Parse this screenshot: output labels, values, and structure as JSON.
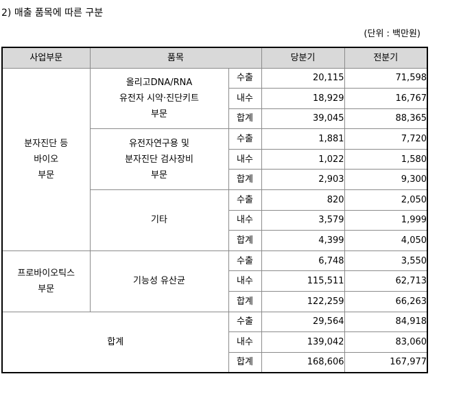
{
  "title": "2) 매출 품목에 따른 구분",
  "unit": "(단위 : 백만원)",
  "table": {
    "headers": {
      "segment": "사업부문",
      "item": "품목",
      "current": "당분기",
      "previous": "전분기"
    },
    "type_labels": {
      "export": "수출",
      "domestic": "내수",
      "total": "합계"
    },
    "segments": [
      {
        "segment_lines": [
          "분자진단 등",
          "바이오",
          "부문"
        ],
        "items": [
          {
            "item_lines": [
              "올리고DNA/RNA",
              "유전자 시약·진단키트",
              "부문"
            ],
            "rows": [
              {
                "type": "수출",
                "current": "20,115",
                "previous": "71,598"
              },
              {
                "type": "내수",
                "current": "18,929",
                "previous": "16,767"
              },
              {
                "type": "합계",
                "current": "39,045",
                "previous": "88,365"
              }
            ]
          },
          {
            "item_lines": [
              "유전자연구용 및",
              "분자진단 검사장비",
              "부문"
            ],
            "rows": [
              {
                "type": "수출",
                "current": "1,881",
                "previous": "7,720"
              },
              {
                "type": "내수",
                "current": "1,022",
                "previous": "1,580"
              },
              {
                "type": "합계",
                "current": "2,903",
                "previous": "9,300"
              }
            ]
          },
          {
            "item_lines": [
              "기타"
            ],
            "rows": [
              {
                "type": "수출",
                "current": "820",
                "previous": "2,050"
              },
              {
                "type": "내수",
                "current": "3,579",
                "previous": "1,999"
              },
              {
                "type": "합계",
                "current": "4,399",
                "previous": "4,050"
              }
            ]
          }
        ]
      },
      {
        "segment_lines": [
          "프로바이오틱스",
          "부문"
        ],
        "items": [
          {
            "item_lines": [
              "기능성 유산균"
            ],
            "rows": [
              {
                "type": "수출",
                "current": "6,748",
                "previous": "3,550"
              },
              {
                "type": "내수",
                "current": "115,511",
                "previous": "62,713"
              },
              {
                "type": "합계",
                "current": "122,259",
                "previous": "66,263"
              }
            ]
          }
        ]
      }
    ],
    "grand_total": {
      "label": "합계",
      "rows": [
        {
          "type": "수출",
          "current": "29,564",
          "previous": "84,918"
        },
        {
          "type": "내수",
          "current": "139,042",
          "previous": "83,060"
        },
        {
          "type": "합계",
          "current": "168,606",
          "previous": "167,977"
        }
      ]
    }
  },
  "colors": {
    "header_bg": "#d9d9d9",
    "inner_border": "#8a8a8a",
    "outer_border": "#000000"
  }
}
